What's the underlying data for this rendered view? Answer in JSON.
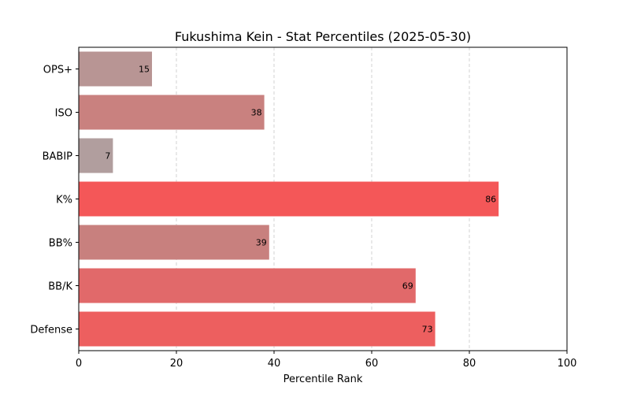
{
  "chart_data": {
    "type": "bar",
    "orientation": "horizontal",
    "title": "Fukushima Kein - Stat Percentiles (2025-05-30)",
    "xlabel": "Percentile Rank",
    "ylabel": "",
    "xlim": [
      0,
      100
    ],
    "xticks": [
      0,
      20,
      40,
      60,
      80,
      100
    ],
    "grid": "x-dashed",
    "categories": [
      "OPS+",
      "ISO",
      "BABIP",
      "K%",
      "BB%",
      "BB/K",
      "Defense"
    ],
    "values": [
      15,
      38,
      7,
      86,
      39,
      69,
      73
    ],
    "colors": [
      "#b89594",
      "#c9817f",
      "#b19e9e",
      "#f45758",
      "#c8807e",
      "#e1696a",
      "#ed5f5f"
    ]
  }
}
